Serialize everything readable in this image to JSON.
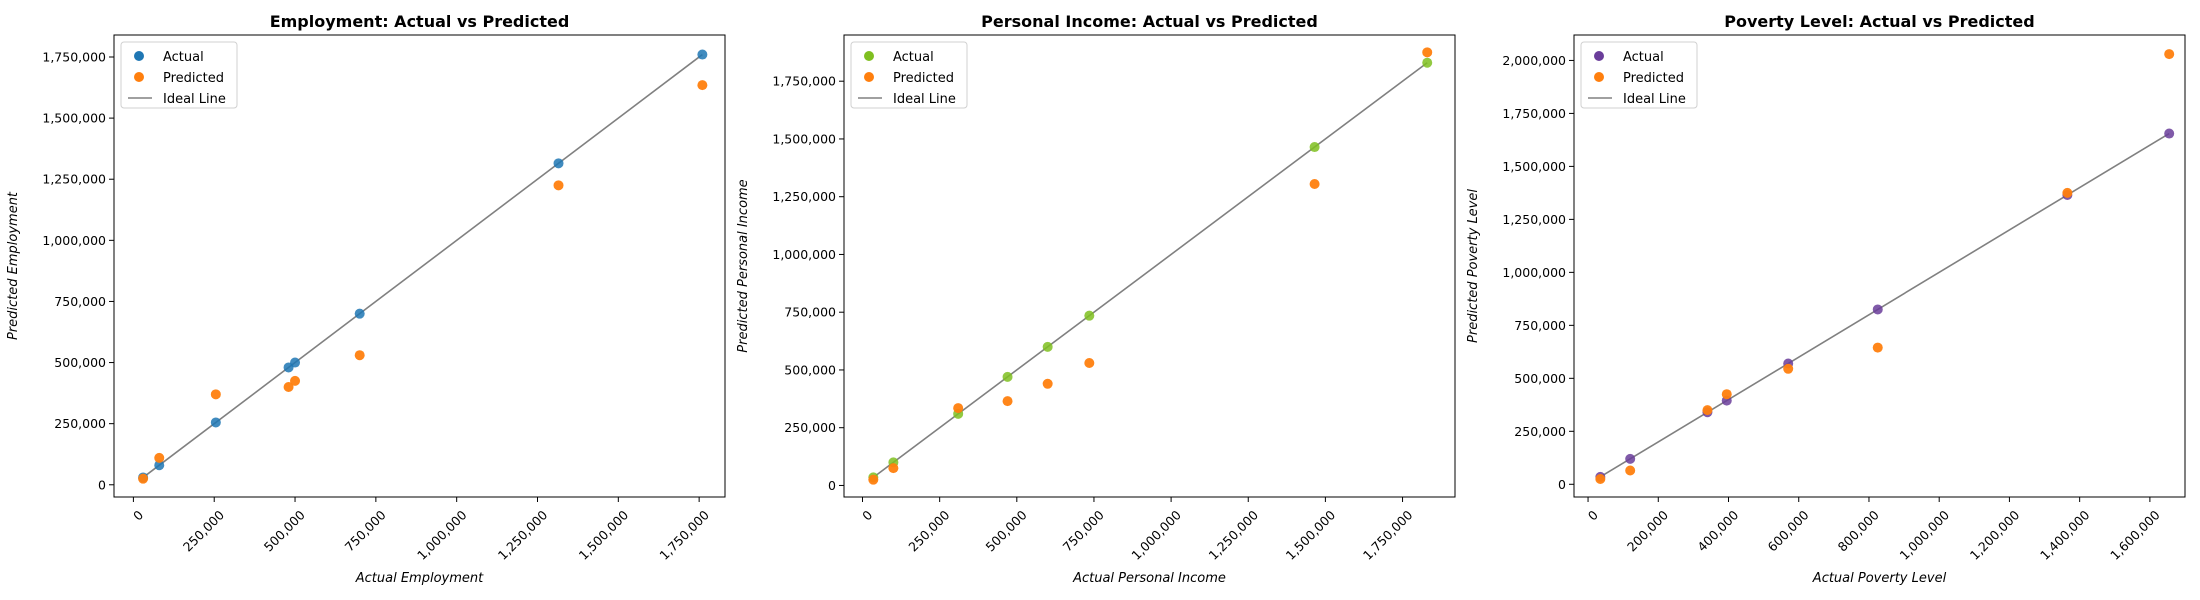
{
  "chart_data": [
    {
      "type": "scatter",
      "title": "Employment: Actual vs Predicted",
      "xlabel": "Actual Employment",
      "ylabel": "Predicted Employment",
      "xlim": [
        -60000,
        1830000
      ],
      "ylim": [
        -50000,
        1840000
      ],
      "xticks": [
        0,
        250000,
        500000,
        750000,
        1000000,
        1250000,
        1500000,
        1750000
      ],
      "xtick_labels": [
        "0",
        "250,000",
        "500,000",
        "750,000",
        "1,000,000",
        "1,250,000",
        "1,500,000",
        "1,750,000"
      ],
      "yticks": [
        0,
        250000,
        500000,
        750000,
        1000000,
        1250000,
        1500000,
        1750000
      ],
      "ytick_labels": [
        "0",
        "250,000",
        "500,000",
        "750,000",
        "1,000,000",
        "1,250,000",
        "1,500,000",
        "1,750,000"
      ],
      "legend": [
        "Actual",
        "Predicted",
        "Ideal Line"
      ],
      "legend_position": "top-left",
      "grid": false,
      "ideal_line": [
        30000,
        1760000
      ],
      "series": [
        {
          "name": "Actual",
          "color": "#1f77b4",
          "x": [
            30000,
            80000,
            255000,
            480000,
            500000,
            700000,
            1315000,
            1760000
          ],
          "y": [
            30000,
            80000,
            255000,
            480000,
            500000,
            700000,
            1315000,
            1760000
          ]
        },
        {
          "name": "Predicted",
          "color": "#ff7f0e",
          "x": [
            30000,
            80000,
            255000,
            480000,
            500000,
            700000,
            1315000,
            1760000
          ],
          "y": [
            25000,
            110000,
            370000,
            400000,
            425000,
            530000,
            1225000,
            1635000
          ]
        }
      ]
    },
    {
      "type": "scatter",
      "title": "Personal Income: Actual vs Predicted",
      "xlabel": "Actual Personal Income",
      "ylabel": "Predicted Personal Income",
      "xlim": [
        -60000,
        1920000
      ],
      "ylim": [
        -50000,
        1950000
      ],
      "xticks": [
        0,
        250000,
        500000,
        750000,
        1000000,
        1250000,
        1500000,
        1750000
      ],
      "xtick_labels": [
        "0",
        "250,000",
        "500,000",
        "750,000",
        "1,000,000",
        "1,250,000",
        "1,500,000",
        "1,750,000"
      ],
      "yticks": [
        0,
        250000,
        500000,
        750000,
        1000000,
        1250000,
        1500000,
        1750000
      ],
      "ytick_labels": [
        "0",
        "250,000",
        "500,000",
        "750,000",
        "1,000,000",
        "1,250,000",
        "1,500,000",
        "1,750,000"
      ],
      "legend": [
        "Actual",
        "Predicted",
        "Ideal Line"
      ],
      "legend_position": "top-left",
      "grid": false,
      "ideal_line": [
        35000,
        1830000
      ],
      "series": [
        {
          "name": "Actual",
          "color": "#7fbf20",
          "x": [
            35000,
            100000,
            310000,
            470000,
            600000,
            735000,
            1465000,
            1830000
          ],
          "y": [
            35000,
            100000,
            310000,
            470000,
            600000,
            735000,
            1465000,
            1830000
          ]
        },
        {
          "name": "Predicted",
          "color": "#ff7f0e",
          "x": [
            35000,
            100000,
            310000,
            470000,
            600000,
            735000,
            1465000,
            1830000
          ],
          "y": [
            25000,
            75000,
            335000,
            365000,
            440000,
            530000,
            1305000,
            1875000
          ]
        }
      ]
    },
    {
      "type": "scatter",
      "title": "Poverty Level: Actual vs Predicted",
      "xlabel": "Actual Poverty Level",
      "ylabel": "Predicted Poverty Level",
      "xlim": [
        -40000,
        1700000
      ],
      "ylim": [
        -60000,
        2120000
      ],
      "xticks": [
        0,
        200000,
        400000,
        600000,
        800000,
        1000000,
        1200000,
        1400000,
        1600000
      ],
      "xtick_labels": [
        "0",
        "200,000",
        "400,000",
        "600,000",
        "800,000",
        "1,000,000",
        "1,200,000",
        "1,400,000",
        "1,600,000"
      ],
      "yticks": [
        0,
        250000,
        500000,
        750000,
        1000000,
        1250000,
        1500000,
        1750000,
        2000000
      ],
      "ytick_labels": [
        "0",
        "250,000",
        "500,000",
        "750,000",
        "1,000,000",
        "1,250,000",
        "1,500,000",
        "1,750,000",
        "2,000,000"
      ],
      "legend": [
        "Actual",
        "Predicted",
        "Ideal Line"
      ],
      "legend_position": "top-left",
      "grid": false,
      "ideal_line": [
        35000,
        1655000
      ],
      "series": [
        {
          "name": "Actual",
          "color": "#6a3d9a",
          "x": [
            35000,
            120000,
            340000,
            395000,
            570000,
            825000,
            1365000,
            1655000
          ],
          "y": [
            35000,
            120000,
            340000,
            395000,
            570000,
            825000,
            1365000,
            1655000
          ]
        },
        {
          "name": "Predicted",
          "color": "#ff7f0e",
          "x": [
            35000,
            120000,
            340000,
            395000,
            570000,
            825000,
            1365000,
            1655000
          ],
          "y": [
            25000,
            65000,
            350000,
            425000,
            545000,
            645000,
            1375000,
            2030000
          ]
        }
      ]
    }
  ]
}
